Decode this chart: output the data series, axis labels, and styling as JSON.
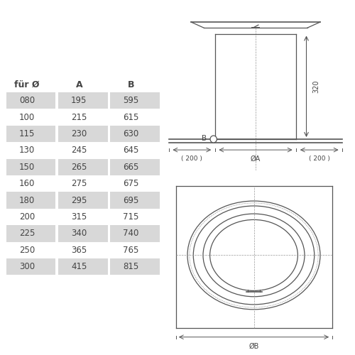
{
  "table_headers": [
    "für Ø",
    "A",
    "B"
  ],
  "table_rows": [
    [
      "080",
      "195",
      "595"
    ],
    [
      "100",
      "215",
      "615"
    ],
    [
      "115",
      "230",
      "630"
    ],
    [
      "130",
      "245",
      "645"
    ],
    [
      "150",
      "265",
      "665"
    ],
    [
      "160",
      "275",
      "675"
    ],
    [
      "180",
      "295",
      "695"
    ],
    [
      "200",
      "315",
      "715"
    ],
    [
      "225",
      "340",
      "740"
    ],
    [
      "250",
      "365",
      "765"
    ],
    [
      "300",
      "415",
      "815"
    ]
  ],
  "shaded_rows": [
    0,
    2,
    4,
    6,
    8,
    10
  ],
  "row_bg_color": "#d8d8d8",
  "text_color": "#444444",
  "line_color": "#555555",
  "bg_color": "#ffffff"
}
